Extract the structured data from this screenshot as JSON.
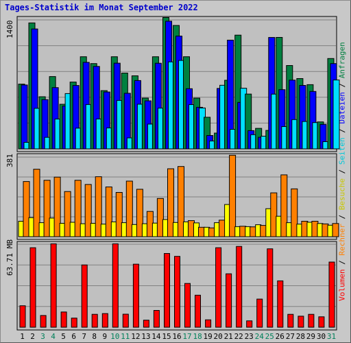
{
  "chart_data": {
    "title": "Tages-Statistik im Monat September 2022",
    "type": "bar",
    "categories": [
      "1",
      "2",
      "3",
      "4",
      "5",
      "6",
      "7",
      "8",
      "9",
      "10",
      "11",
      "12",
      "13",
      "14",
      "15",
      "16",
      "17",
      "18",
      "19",
      "20",
      "21",
      "22",
      "23",
      "24",
      "25",
      "26",
      "27",
      "28",
      "29",
      "30",
      "31"
    ],
    "weekend_days": [
      "3",
      "4",
      "10",
      "11",
      "17",
      "18",
      "24",
      "25",
      "31"
    ],
    "panels": [
      {
        "id": "top",
        "ylabel": "1400",
        "ymax": 1400,
        "series": [
          {
            "name": "Anfragen",
            "color": "#008040",
            "values": [
              703,
              1367,
              566,
              785,
              484,
              725,
              1000,
              926,
              632,
              1000,
              823,
              793,
              551,
              1000,
              1426,
              1340,
              1000,
              551,
              343,
              171,
              745,
              1235,
              595,
              223,
              200,
              1210,
              905,
              763,
              697,
              293,
              981
            ]
          },
          {
            "name": "Dateien",
            "color": "#0000ff",
            "values": [
              693,
              1302,
              535,
              665,
              465,
              688,
              939,
              895,
              617,
              930,
              603,
              742,
              521,
              929,
              1386,
              1224,
              653,
              451,
              145,
              656,
              1180,
              504,
              198,
              126,
              1209,
              643,
              746,
              689,
              623,
              266,
              926
            ]
          },
          {
            "name": "Seiten",
            "color": "#00e0ff",
            "values": [
              71,
              440,
              125,
              324,
              600,
              225,
              481,
              325,
              227,
              526,
              119,
              485,
              269,
              442,
              944,
              960,
              480,
              444,
              86,
              690,
              212,
              658,
              154,
              138,
              594,
              242,
              318,
              297,
              285,
              78,
              748
            ]
          }
        ]
      },
      {
        "id": "middle",
        "ylabel": "381",
        "ymax": 381,
        "series": [
          {
            "name": "Besuche",
            "color": "#ffff00",
            "values": [
              74,
              91,
              67,
              89,
              64,
              69,
              62,
              64,
              60,
              71,
              67,
              58,
              62,
              65,
              82,
              68,
              71,
              66,
              45,
              67,
              154,
              48,
              48,
              57,
              134,
              98,
              67,
              60,
              69,
              63,
              55
            ]
          },
          {
            "name": "Rechner",
            "color": "#ff8000",
            "values": [
              264,
              323,
              270,
              285,
              216,
              270,
              250,
              287,
              238,
              212,
              266,
              227,
              121,
              183,
              325,
              336,
              77,
              45,
              42,
              79,
              390,
              50,
              47,
              54,
              210,
              296,
              229,
              74,
              74,
              61,
              63
            ]
          }
        ]
      },
      {
        "id": "bottom",
        "ylabel": "63.71 MB",
        "ymax": 63.71,
        "series": [
          {
            "name": "Volumen",
            "color": "#ff0000",
            "values": [
              16.5,
              61.0,
              9.0,
              64.0,
              11.7,
              7.0,
              47.8,
              9.9,
              10.5,
              64.0,
              10.0,
              48.4,
              5.4,
              12.9,
              56.6,
              54.4,
              33.6,
              24.6,
              5.7,
              61.0,
              41.0,
              62.0,
              4.9,
              21.6,
              60.2,
              35.6,
              9.9,
              8.5,
              9.9,
              8.0,
              50.0
            ]
          }
        ]
      }
    ],
    "legend": [
      "Volumen",
      " / ",
      "Rechner",
      " / ",
      "Besuche",
      " / ",
      "Seiten",
      " / ",
      "Dateien",
      " / ",
      "Anfragen"
    ]
  }
}
